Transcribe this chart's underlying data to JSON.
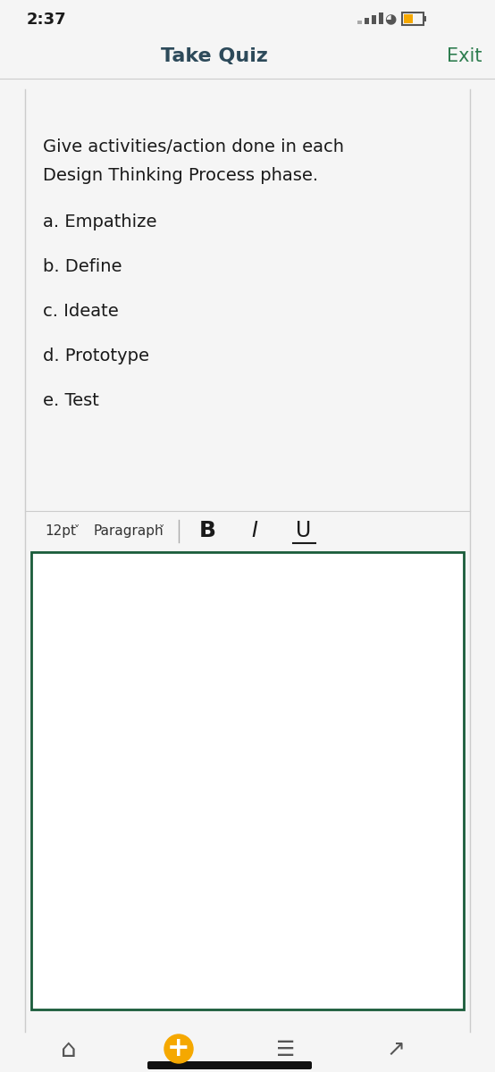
{
  "time": "2:37",
  "title": "Take Quiz",
  "exit_text": "Exit",
  "title_color": "#2d4a5a",
  "exit_color": "#2e7d4f",
  "bg_color": "#f5f5f5",
  "question_text_line1": "Give activities/action done in each",
  "question_text_line2": "Design Thinking Process phase.",
  "items": [
    "a. Empathize",
    "b. Define",
    "c. Ideate",
    "d. Prototype",
    "e. Test"
  ],
  "separator_color": "#cccccc",
  "card_border_color": "#cccccc",
  "text_box_border_color": "#1a5c3a",
  "item_font_size": 14,
  "question_font_size": 14,
  "status_bar_color": "#1a1a1a",
  "toolbar_color": "#333333"
}
